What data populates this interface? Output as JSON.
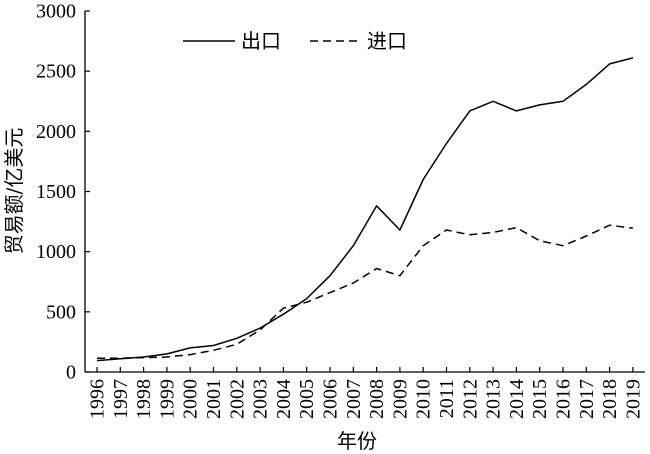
{
  "chart_data": {
    "type": "line",
    "x": [
      1996,
      1997,
      1998,
      1999,
      2000,
      2001,
      2002,
      2003,
      2004,
      2005,
      2006,
      2007,
      2008,
      2009,
      2010,
      2011,
      2012,
      2013,
      2014,
      2015,
      2016,
      2017,
      2018,
      2019
    ],
    "series": [
      {
        "name": "出口",
        "line_style": "solid",
        "values": [
          95,
          110,
          125,
          150,
          200,
          220,
          280,
          365,
          480,
          610,
          800,
          1050,
          1380,
          1180,
          1600,
          1900,
          2170,
          2250,
          2170,
          2220,
          2250,
          2390,
          2560,
          2610
        ]
      },
      {
        "name": "进口",
        "line_style": "dashed",
        "values": [
          115,
          115,
          120,
          125,
          145,
          180,
          230,
          350,
          530,
          580,
          660,
          740,
          860,
          800,
          1050,
          1180,
          1140,
          1160,
          1200,
          1090,
          1050,
          1130,
          1220,
          1195
        ]
      }
    ],
    "xlabel": "年份",
    "ylabel": "贸易额/亿美元",
    "ylim": [
      0,
      3000
    ],
    "yticks": [
      0,
      500,
      1000,
      1500,
      2000,
      2500,
      3000
    ],
    "grid": false,
    "legend": "top-left",
    "colors": {
      "line": "#000000",
      "background": "#ffffff"
    }
  }
}
